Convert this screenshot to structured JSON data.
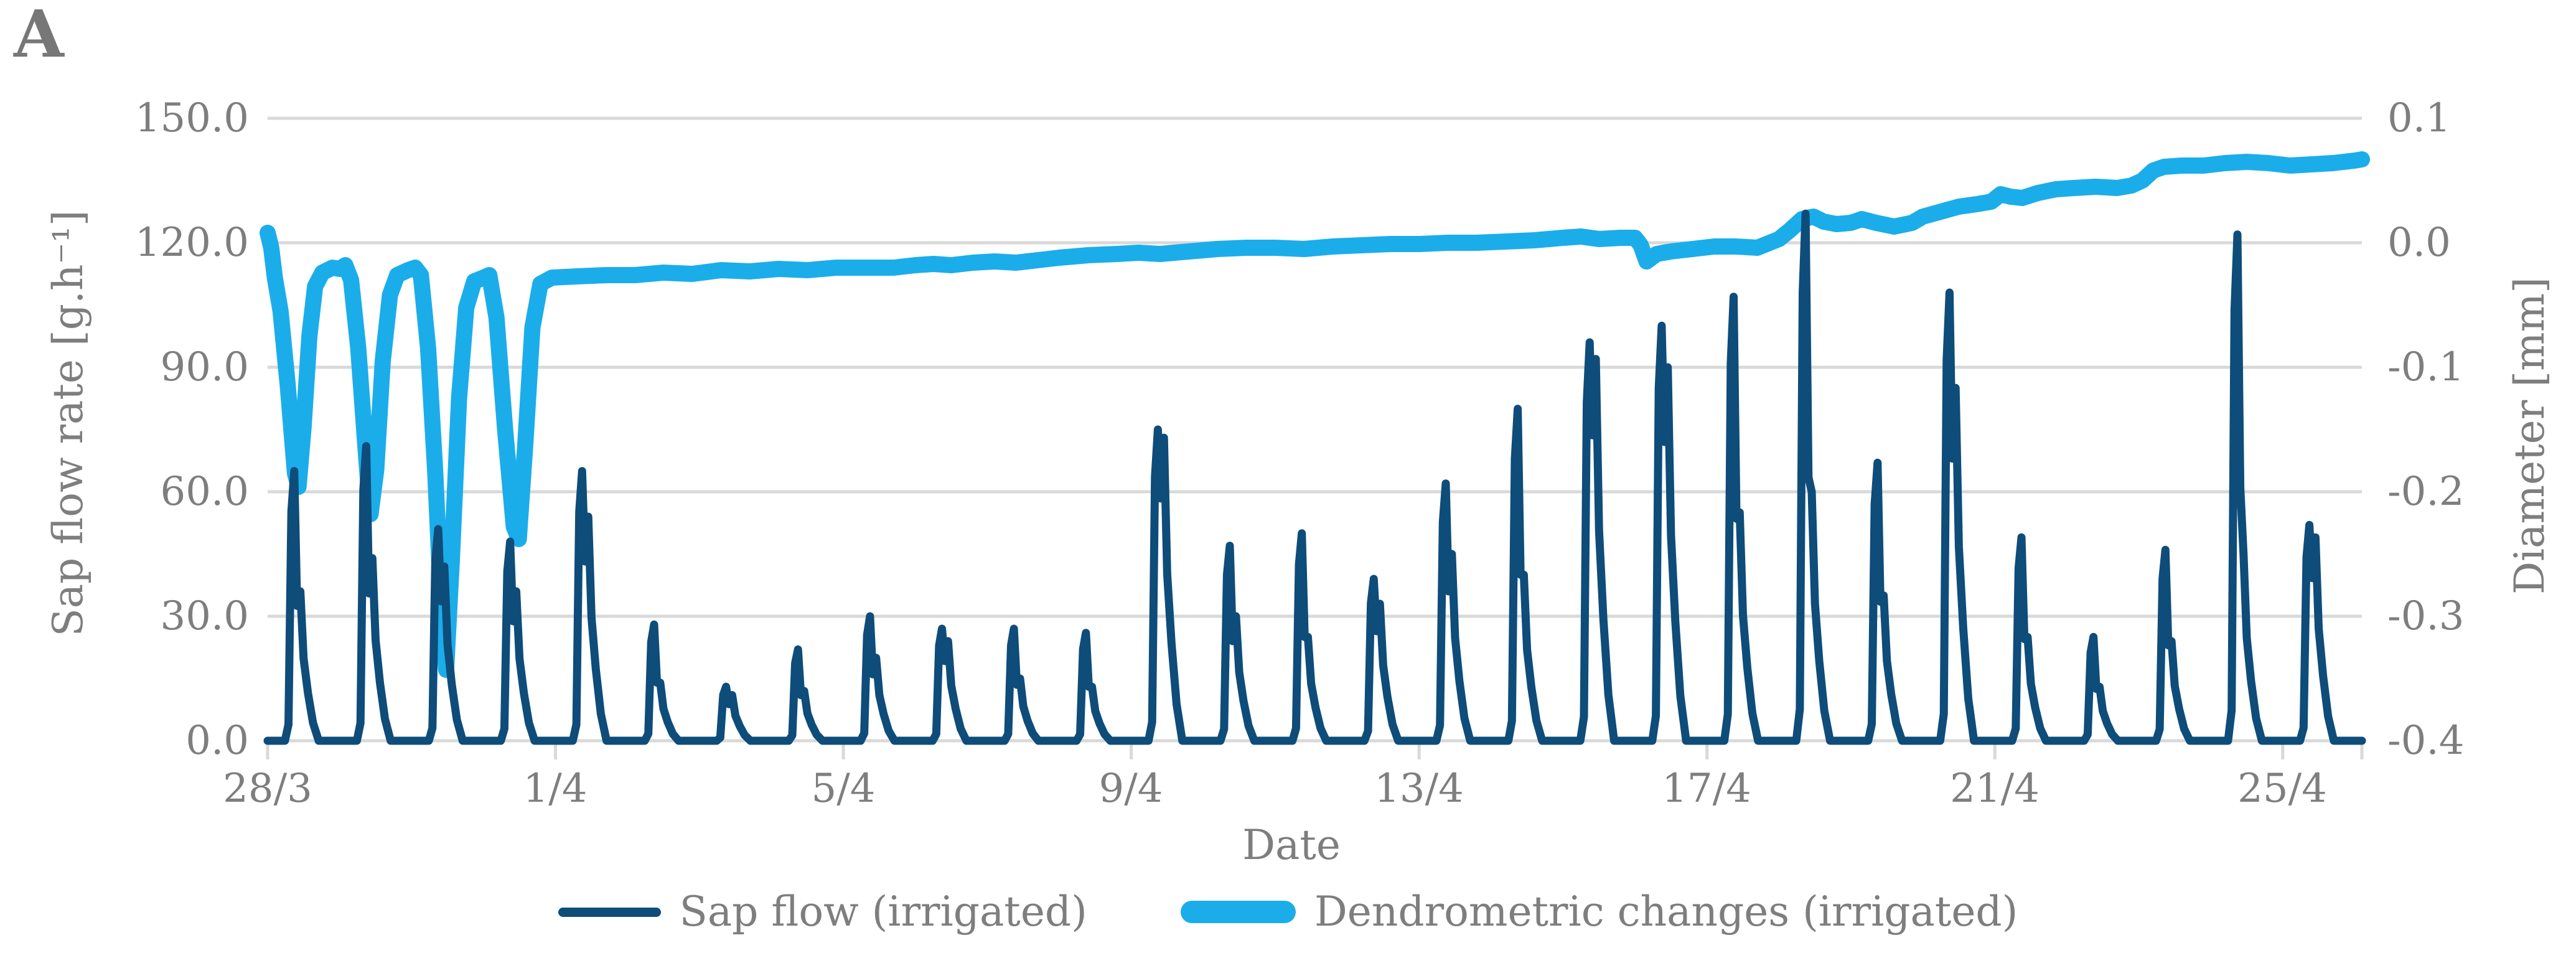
{
  "panel_label": "A",
  "colors": {
    "sap_flow": "#0E4C7A",
    "dendro": "#1BADEA",
    "grid": "#D9D9D9",
    "text": "#7E7E7E"
  },
  "chart_data": {
    "type": "line",
    "title": "",
    "grid": "horizontal",
    "legend_position": "bottom",
    "x_axis": {
      "label": "Date",
      "tick_labels": [
        "28/3",
        "1/4",
        "5/4",
        "9/4",
        "13/4",
        "17/4",
        "21/4",
        "25/4"
      ],
      "tick_days": [
        0,
        4,
        8,
        12,
        16,
        20,
        24,
        28
      ],
      "range_days": [
        0,
        29.1
      ]
    },
    "y_left": {
      "label": "Sap flow rate [g.h⁻¹]",
      "ticks": [
        "150.0",
        "120.0",
        "90.0",
        "60.0",
        "30.0",
        "0.0"
      ],
      "min": 0,
      "max": 150,
      "unit": "g/h"
    },
    "y_right": {
      "label": "Diameter [mm]",
      "ticks": [
        "0.1",
        "0.0",
        "-0.1",
        "-0.2",
        "-0.3",
        "-0.4"
      ],
      "min": -0.4,
      "max": 0.1,
      "unit": "mm"
    },
    "series": [
      {
        "name": "Sap flow (irrigated)",
        "axis": "left",
        "shape": "daily-spikes",
        "daily_peaks": [
          {
            "date": "28/3",
            "peak": 65,
            "secondary": 36
          },
          {
            "date": "29/3",
            "peak": 71,
            "secondary": 44
          },
          {
            "date": "30/3",
            "peak": 51,
            "secondary": 42
          },
          {
            "date": "31/3",
            "peak": 48,
            "secondary": 36
          },
          {
            "date": "1/4",
            "peak": 65,
            "secondary": 54
          },
          {
            "date": "2/4",
            "peak": 28,
            "secondary": 14
          },
          {
            "date": "3/4",
            "peak": 13,
            "secondary": 11
          },
          {
            "date": "4/4",
            "peak": 22,
            "secondary": 12
          },
          {
            "date": "5/4",
            "peak": 30,
            "secondary": 20
          },
          {
            "date": "6/4",
            "peak": 27,
            "secondary": 24
          },
          {
            "date": "7/4",
            "peak": 27,
            "secondary": 15
          },
          {
            "date": "8/4",
            "peak": 26,
            "secondary": 13
          },
          {
            "date": "9/4",
            "peak": 75,
            "secondary": 73
          },
          {
            "date": "10/4",
            "peak": 47,
            "secondary": 30
          },
          {
            "date": "11/4",
            "peak": 50,
            "secondary": 25
          },
          {
            "date": "12/4",
            "peak": 39,
            "secondary": 33
          },
          {
            "date": "13/4",
            "peak": 62,
            "secondary": 45
          },
          {
            "date": "14/4",
            "peak": 80,
            "secondary": 40
          },
          {
            "date": "15/4",
            "peak": 96,
            "secondary": 92
          },
          {
            "date": "16/4",
            "peak": 100,
            "secondary": 90
          },
          {
            "date": "17/4",
            "peak": 107,
            "secondary": 55
          },
          {
            "date": "18/4",
            "peak": 127,
            "secondary": 60
          },
          {
            "date": "19/4",
            "peak": 67,
            "secondary": 35
          },
          {
            "date": "20/4",
            "peak": 108,
            "secondary": 85
          },
          {
            "date": "21/4",
            "peak": 49,
            "secondary": 25
          },
          {
            "date": "22/4",
            "peak": 25,
            "secondary": 13
          },
          {
            "date": "23/4",
            "peak": 46,
            "secondary": 24
          },
          {
            "date": "24/4",
            "peak": 122,
            "secondary": 45
          },
          {
            "date": "25/4",
            "peak": 52,
            "secondary": 49
          }
        ]
      },
      {
        "name": "Dendrometric changes (irrigated)",
        "axis": "right",
        "points": [
          [
            0.0,
            0.008
          ],
          [
            0.05,
            -0.004
          ],
          [
            0.1,
            -0.028
          ],
          [
            0.18,
            -0.055
          ],
          [
            0.28,
            -0.115
          ],
          [
            0.38,
            -0.185
          ],
          [
            0.43,
            -0.196
          ],
          [
            0.5,
            -0.148
          ],
          [
            0.58,
            -0.075
          ],
          [
            0.66,
            -0.035
          ],
          [
            0.76,
            -0.024
          ],
          [
            0.9,
            -0.02
          ],
          [
            1.0,
            -0.021
          ],
          [
            1.08,
            -0.018
          ],
          [
            1.16,
            -0.03
          ],
          [
            1.26,
            -0.085
          ],
          [
            1.36,
            -0.165
          ],
          [
            1.43,
            -0.218
          ],
          [
            1.51,
            -0.182
          ],
          [
            1.6,
            -0.095
          ],
          [
            1.7,
            -0.042
          ],
          [
            1.8,
            -0.026
          ],
          [
            1.95,
            -0.022
          ],
          [
            2.05,
            -0.02
          ],
          [
            2.13,
            -0.026
          ],
          [
            2.23,
            -0.085
          ],
          [
            2.33,
            -0.185
          ],
          [
            2.42,
            -0.3
          ],
          [
            2.48,
            -0.343
          ],
          [
            2.56,
            -0.255
          ],
          [
            2.66,
            -0.125
          ],
          [
            2.76,
            -0.052
          ],
          [
            2.87,
            -0.031
          ],
          [
            3.0,
            -0.028
          ],
          [
            3.08,
            -0.026
          ],
          [
            3.18,
            -0.06
          ],
          [
            3.3,
            -0.15
          ],
          [
            3.42,
            -0.228
          ],
          [
            3.49,
            -0.238
          ],
          [
            3.58,
            -0.162
          ],
          [
            3.68,
            -0.068
          ],
          [
            3.79,
            -0.033
          ],
          [
            3.95,
            -0.028
          ],
          [
            4.3,
            -0.027
          ],
          [
            4.7,
            -0.026
          ],
          [
            5.1,
            -0.026
          ],
          [
            5.5,
            -0.024
          ],
          [
            5.9,
            -0.025
          ],
          [
            6.3,
            -0.022
          ],
          [
            6.7,
            -0.023
          ],
          [
            7.1,
            -0.021
          ],
          [
            7.5,
            -0.022
          ],
          [
            7.9,
            -0.02
          ],
          [
            8.3,
            -0.02
          ],
          [
            8.7,
            -0.02
          ],
          [
            9.0,
            -0.018
          ],
          [
            9.25,
            -0.017
          ],
          [
            9.5,
            -0.018
          ],
          [
            9.8,
            -0.016
          ],
          [
            10.1,
            -0.015
          ],
          [
            10.4,
            -0.016
          ],
          [
            10.7,
            -0.014
          ],
          [
            11.0,
            -0.012
          ],
          [
            11.4,
            -0.01
          ],
          [
            11.8,
            -0.009
          ],
          [
            12.1,
            -0.008
          ],
          [
            12.4,
            -0.009
          ],
          [
            12.8,
            -0.007
          ],
          [
            13.2,
            -0.005
          ],
          [
            13.6,
            -0.004
          ],
          [
            14.0,
            -0.004
          ],
          [
            14.4,
            -0.005
          ],
          [
            14.8,
            -0.003
          ],
          [
            15.2,
            -0.002
          ],
          [
            15.6,
            -0.001
          ],
          [
            16.0,
            -0.001
          ],
          [
            16.4,
            0.0
          ],
          [
            16.8,
            0.0
          ],
          [
            17.2,
            0.001
          ],
          [
            17.6,
            0.002
          ],
          [
            18.0,
            0.004
          ],
          [
            18.25,
            0.005
          ],
          [
            18.5,
            0.003
          ],
          [
            18.8,
            0.004
          ],
          [
            19.0,
            0.004
          ],
          [
            19.08,
            -0.002
          ],
          [
            19.16,
            -0.015
          ],
          [
            19.3,
            -0.009
          ],
          [
            19.5,
            -0.007
          ],
          [
            19.8,
            -0.005
          ],
          [
            20.1,
            -0.003
          ],
          [
            20.4,
            -0.003
          ],
          [
            20.7,
            -0.004
          ],
          [
            21.0,
            0.003
          ],
          [
            21.15,
            0.01
          ],
          [
            21.32,
            0.019
          ],
          [
            21.48,
            0.021
          ],
          [
            21.62,
            0.017
          ],
          [
            21.8,
            0.015
          ],
          [
            22.0,
            0.016
          ],
          [
            22.15,
            0.019
          ],
          [
            22.35,
            0.016
          ],
          [
            22.6,
            0.013
          ],
          [
            22.85,
            0.016
          ],
          [
            23.0,
            0.021
          ],
          [
            23.25,
            0.025
          ],
          [
            23.5,
            0.029
          ],
          [
            23.75,
            0.031
          ],
          [
            23.95,
            0.033
          ],
          [
            24.08,
            0.039
          ],
          [
            24.22,
            0.037
          ],
          [
            24.38,
            0.036
          ],
          [
            24.6,
            0.04
          ],
          [
            24.85,
            0.043
          ],
          [
            25.1,
            0.044
          ],
          [
            25.4,
            0.045
          ],
          [
            25.7,
            0.044
          ],
          [
            25.9,
            0.046
          ],
          [
            26.05,
            0.05
          ],
          [
            26.2,
            0.058
          ],
          [
            26.35,
            0.061
          ],
          [
            26.6,
            0.062
          ],
          [
            26.9,
            0.062
          ],
          [
            27.2,
            0.064
          ],
          [
            27.5,
            0.065
          ],
          [
            27.8,
            0.064
          ],
          [
            28.1,
            0.062
          ],
          [
            28.4,
            0.063
          ],
          [
            28.7,
            0.064
          ],
          [
            29.0,
            0.066
          ],
          [
            29.1,
            0.067
          ]
        ]
      }
    ]
  }
}
